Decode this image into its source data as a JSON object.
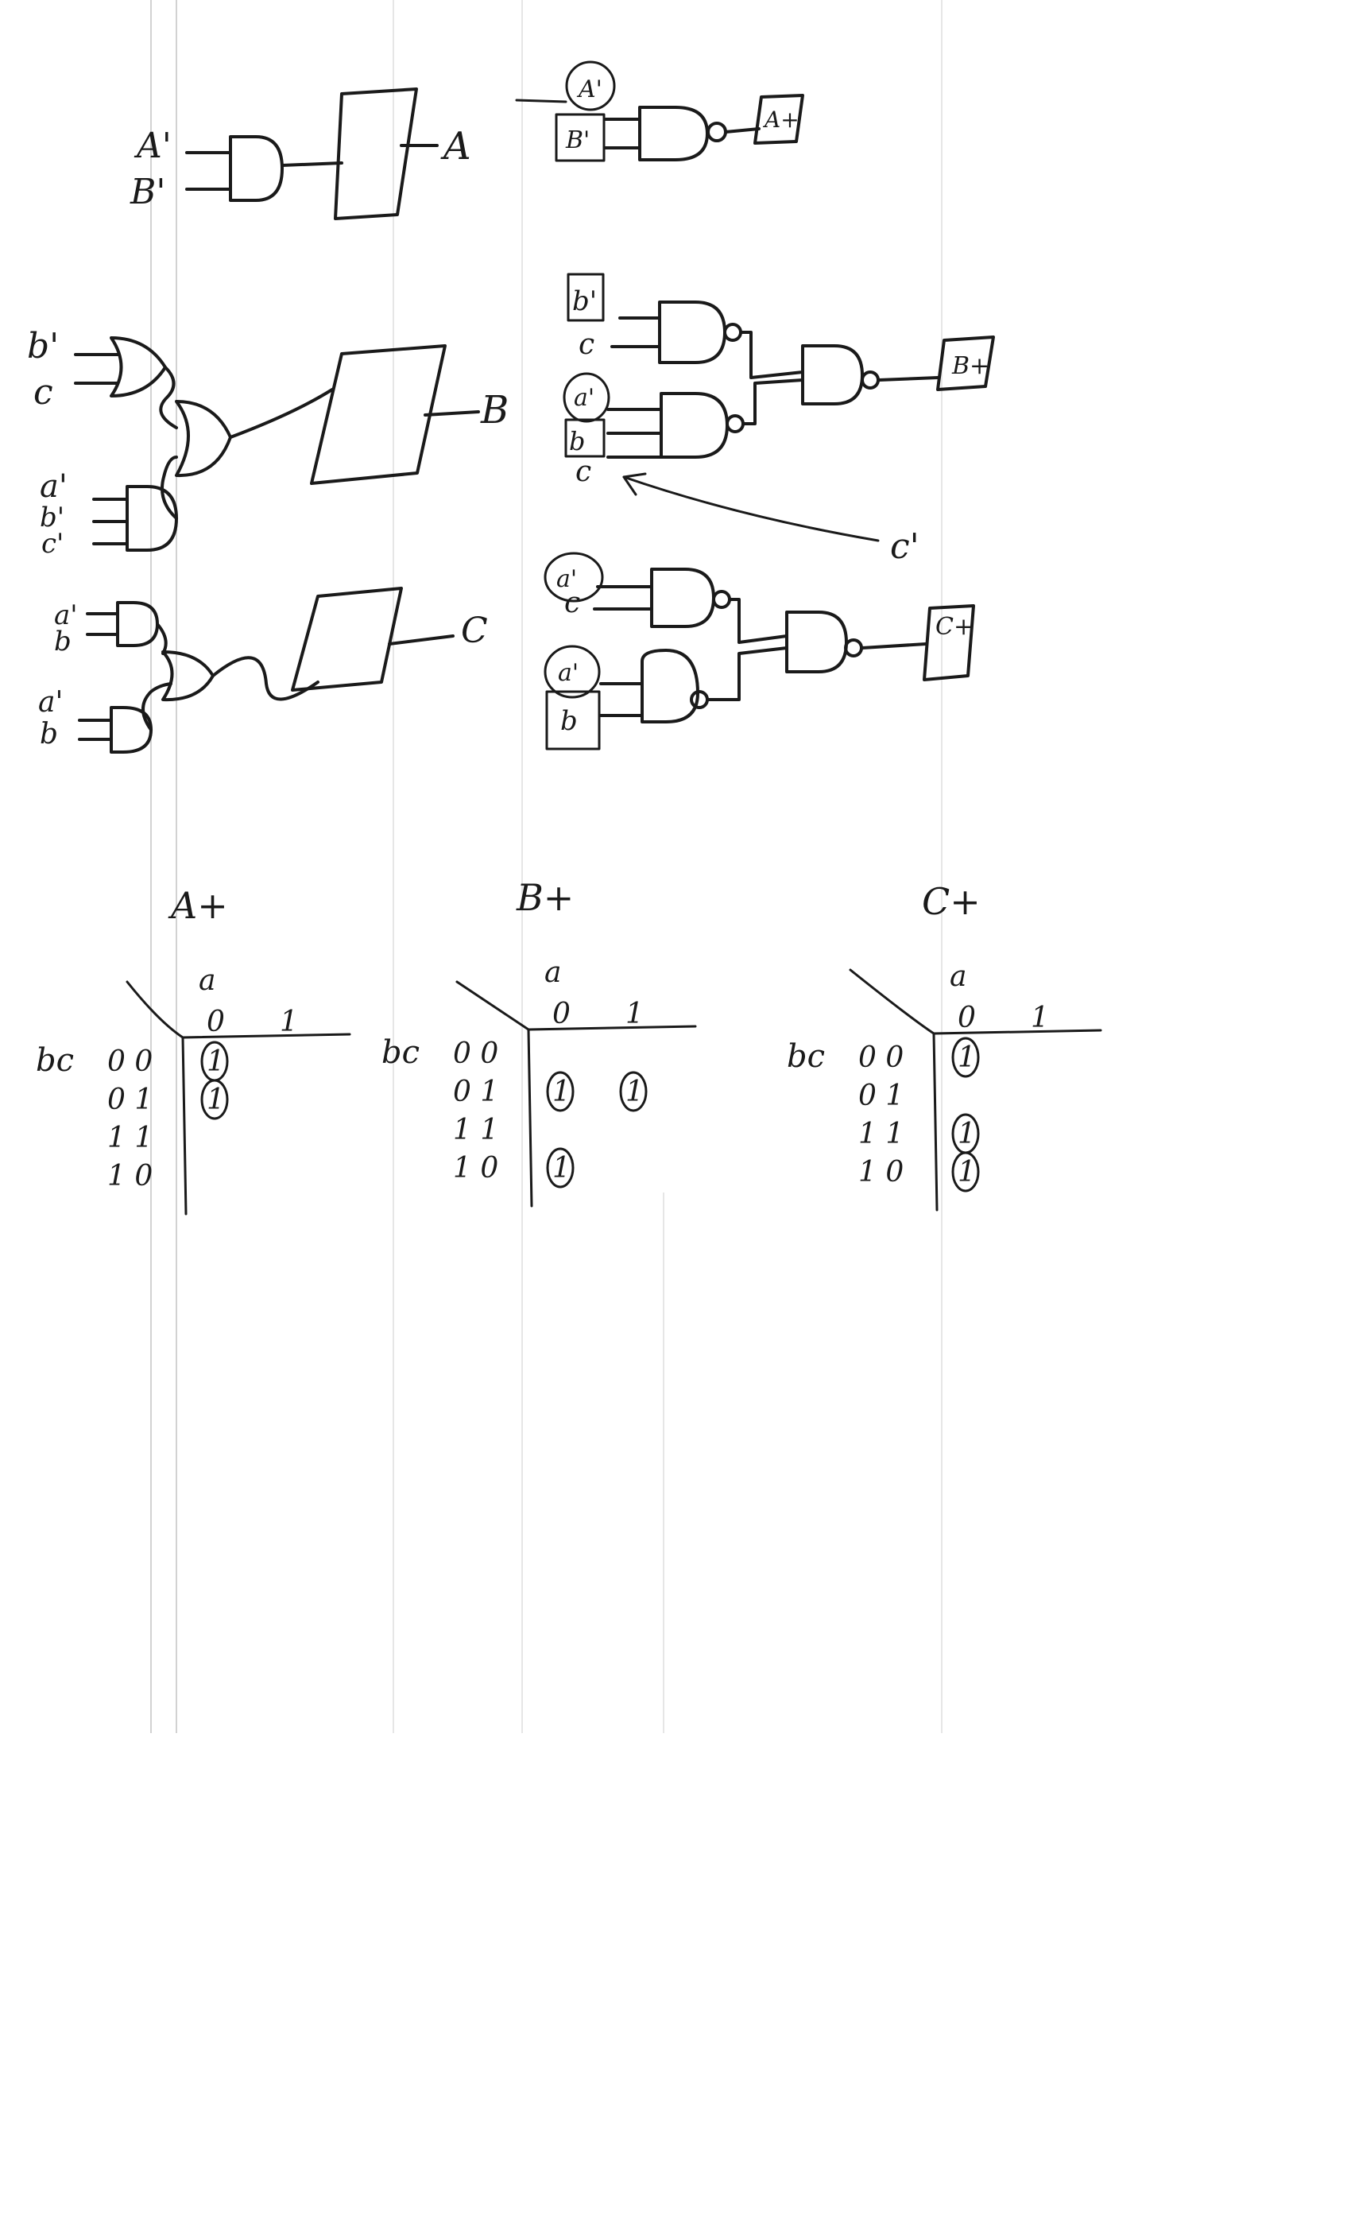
{
  "colors": {
    "ink": "#1a1a1a",
    "paper": "#ffffff",
    "rule": "#d2d2d2"
  },
  "circuits": {
    "a": {
      "inputs": [
        "A'",
        "B'"
      ],
      "ff_output": "A",
      "gate_inputs": [
        "A'",
        "B'"
      ],
      "next_state": "A+"
    },
    "b": {
      "inputs_top": [
        "b'",
        "c"
      ],
      "inputs_bottom": [
        "a'",
        "b'",
        "c'"
      ],
      "ff_output": "B",
      "nand1_inputs": [
        "b'",
        "c"
      ],
      "nand2_inputs": [
        "a'",
        "b",
        "c"
      ],
      "annotation": "c'",
      "next_state": "B+"
    },
    "c": {
      "inputs_top": [
        "a'",
        "b"
      ],
      "inputs_bottom": [
        "a'",
        "b"
      ],
      "ff_output": "C",
      "nand1_inputs": [
        "a'",
        "c"
      ],
      "nand2_inputs": [
        "a'",
        "b"
      ],
      "next_state": "C+"
    }
  },
  "kmaps": [
    {
      "title": "A+",
      "col_var": "a",
      "col_labels": [
        "0",
        "1"
      ],
      "row_var": "bc",
      "row_labels": [
        "0 0",
        "0 1",
        "1 1",
        "1 0"
      ],
      "entries": [
        {
          "row": 0,
          "col": 0,
          "value": "1"
        },
        {
          "row": 1,
          "col": 0,
          "value": "1"
        }
      ]
    },
    {
      "title": "B+",
      "col_var": "a",
      "col_labels": [
        "0",
        "1"
      ],
      "row_var": "bc",
      "row_labels": [
        "0 0",
        "0 1",
        "1 1",
        "1 0"
      ],
      "entries": [
        {
          "row": 1,
          "col": 0,
          "value": "1"
        },
        {
          "row": 1,
          "col": 1,
          "value": "1"
        },
        {
          "row": 3,
          "col": 0,
          "value": "1"
        }
      ]
    },
    {
      "title": "C+",
      "col_var": "a",
      "col_labels": [
        "0",
        "1"
      ],
      "row_var": "bc",
      "row_labels": [
        "0 0",
        "0 1",
        "1 1",
        "1 0"
      ],
      "entries": [
        {
          "row": 0,
          "col": 0,
          "value": "1"
        },
        {
          "row": 2,
          "col": 0,
          "value": "1"
        },
        {
          "row": 3,
          "col": 0,
          "value": "1"
        }
      ]
    }
  ]
}
